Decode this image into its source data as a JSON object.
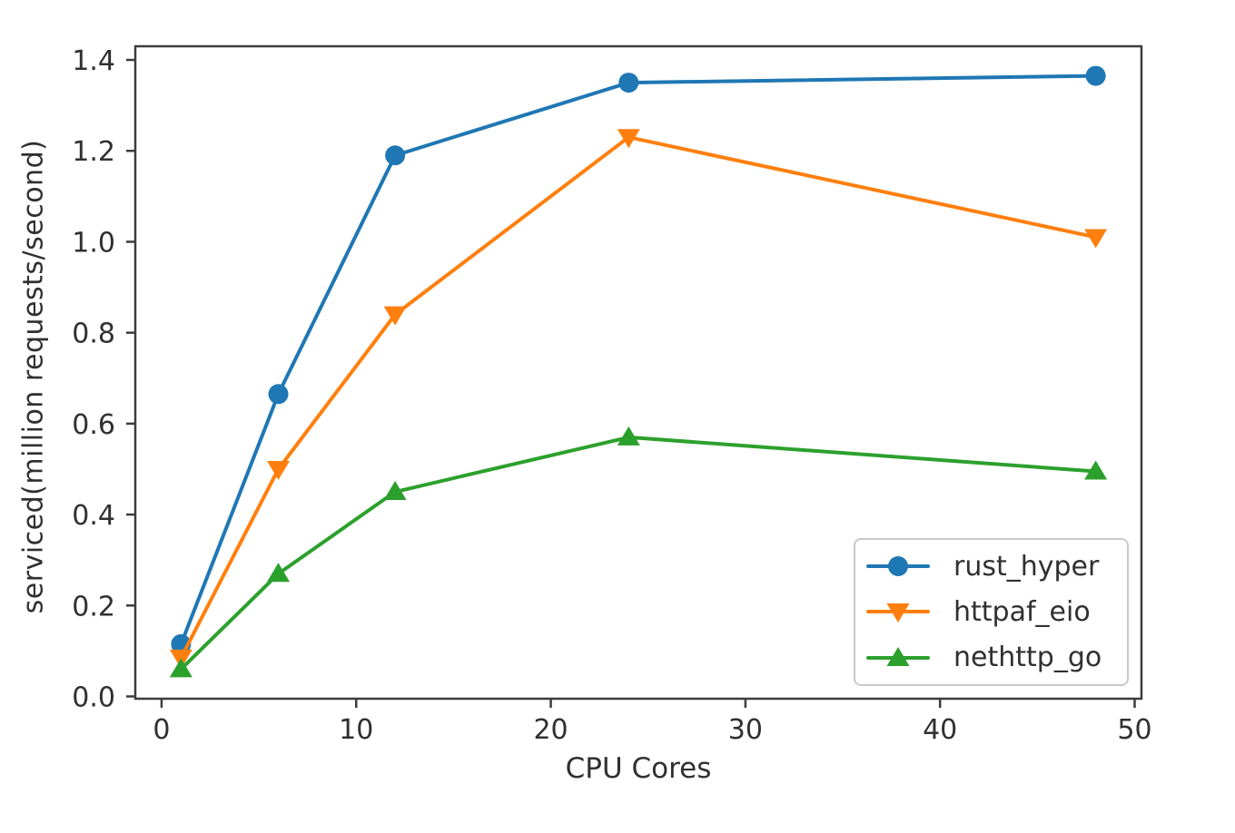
{
  "chart_data": {
    "type": "line",
    "title": "",
    "xlabel": "CPU Cores",
    "ylabel": "serviced(million requests/second)",
    "x": [
      1,
      6,
      12,
      24,
      48
    ],
    "series": [
      {
        "name": "rust_hyper",
        "color": "#1f77b4",
        "marker": "circle",
        "values": [
          0.115,
          0.665,
          1.19,
          1.35,
          1.365
        ]
      },
      {
        "name": "httpaf_eio",
        "color": "#ff7f0e",
        "marker": "triangle-down",
        "values": [
          0.085,
          0.5,
          0.84,
          1.23,
          1.01
        ]
      },
      {
        "name": "nethttp_go",
        "color": "#2ca02c",
        "marker": "triangle-up",
        "values": [
          0.06,
          0.27,
          0.45,
          0.57,
          0.495
        ]
      }
    ],
    "x_ticks": [
      "0",
      "10",
      "20",
      "30",
      "40",
      "50"
    ],
    "y_ticks": [
      "0.0",
      "0.2",
      "0.4",
      "0.6",
      "0.8",
      "1.0",
      "1.2",
      "1.4"
    ],
    "xlim": [
      -1.35,
      50.35
    ],
    "ylim": [
      -0.005,
      1.43
    ],
    "grid": false,
    "legend_position": "lower right",
    "axis_color": "#3c3c3c",
    "text_color": "#303030",
    "legend_border_color": "#c9c9c9",
    "background_color": "#ffffff"
  }
}
